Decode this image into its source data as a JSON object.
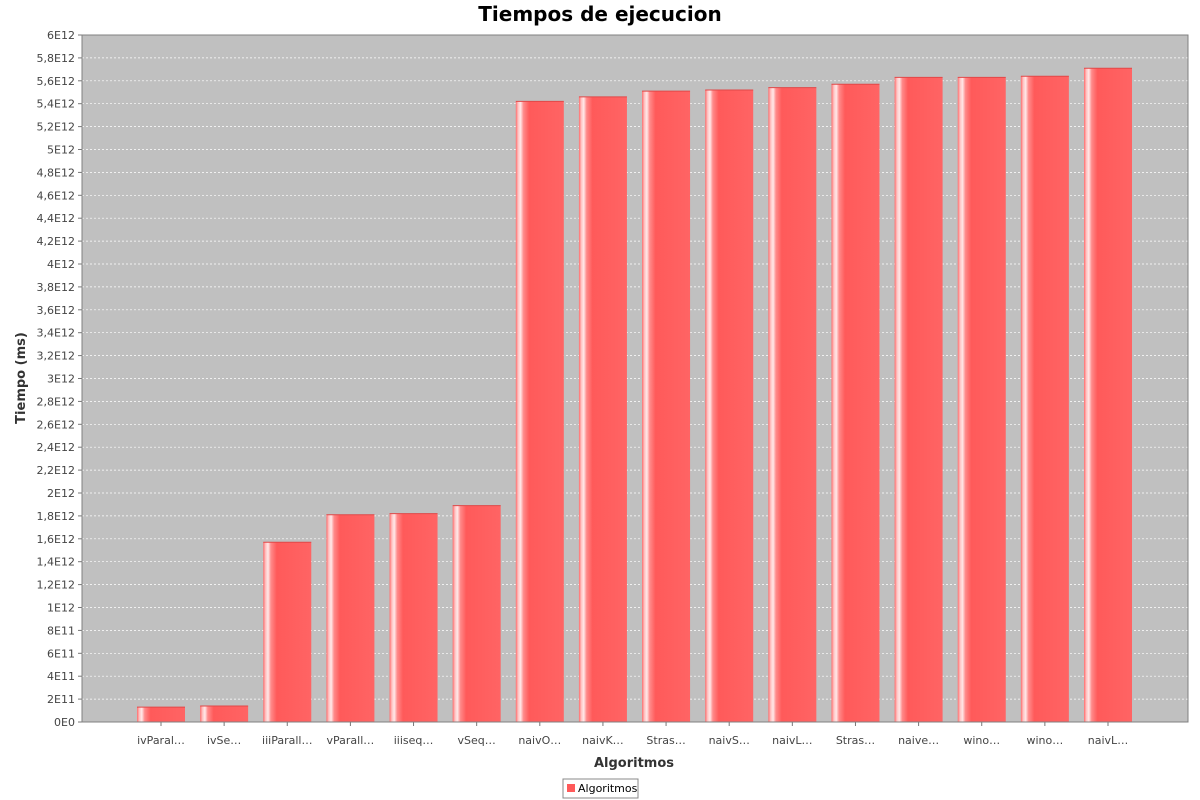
{
  "chart_data": {
    "type": "bar",
    "title": "Tiempos de ejecucion",
    "xlabel": "Algoritmos",
    "ylabel": "Tiempo (ms)",
    "categories": [
      "ivParal…",
      "ivSe…",
      "iiiParall…",
      "vParall…",
      "iiiseq…",
      "vSeq…",
      "naivO…",
      "naivK…",
      "Stras…",
      "naivS…",
      "naivL…",
      "Stras…",
      "naive…",
      "wino…",
      "wino…",
      "naivL…"
    ],
    "series": [
      {
        "name": "Algoritmos",
        "values": [
          130000000000,
          140000000000,
          1570000000000,
          1810000000000,
          1820000000000,
          1890000000000,
          5420000000000,
          5460000000000,
          5510000000000,
          5520000000000,
          5540000000000,
          5570000000000,
          5630000000000,
          5630000000000,
          5640000000000,
          5710000000000
        ]
      }
    ],
    "ylim": [
      0,
      6000000000000
    ],
    "yticks": [
      "0E0",
      "2E11",
      "4E11",
      "6E11",
      "8E11",
      "1E12",
      "1,2E12",
      "1,4E12",
      "1,6E12",
      "1,8E12",
      "2E12",
      "2,2E12",
      "2,4E12",
      "2,6E12",
      "2,8E12",
      "3E12",
      "3,2E12",
      "3,4E12",
      "3,6E12",
      "3,8E12",
      "4E12",
      "4,2E12",
      "4,4E12",
      "4,6E12",
      "4,8E12",
      "5E12",
      "5,2E12",
      "5,4E12",
      "5,6E12",
      "5,8E12",
      "6E12"
    ],
    "grid": true,
    "legend_position": "bottom",
    "colors": {
      "bar": "#ff5a5a",
      "bar_highlight": "#ffe6e6",
      "plot_background": "#c0c0c0",
      "gridline": "#ffffff"
    }
  }
}
